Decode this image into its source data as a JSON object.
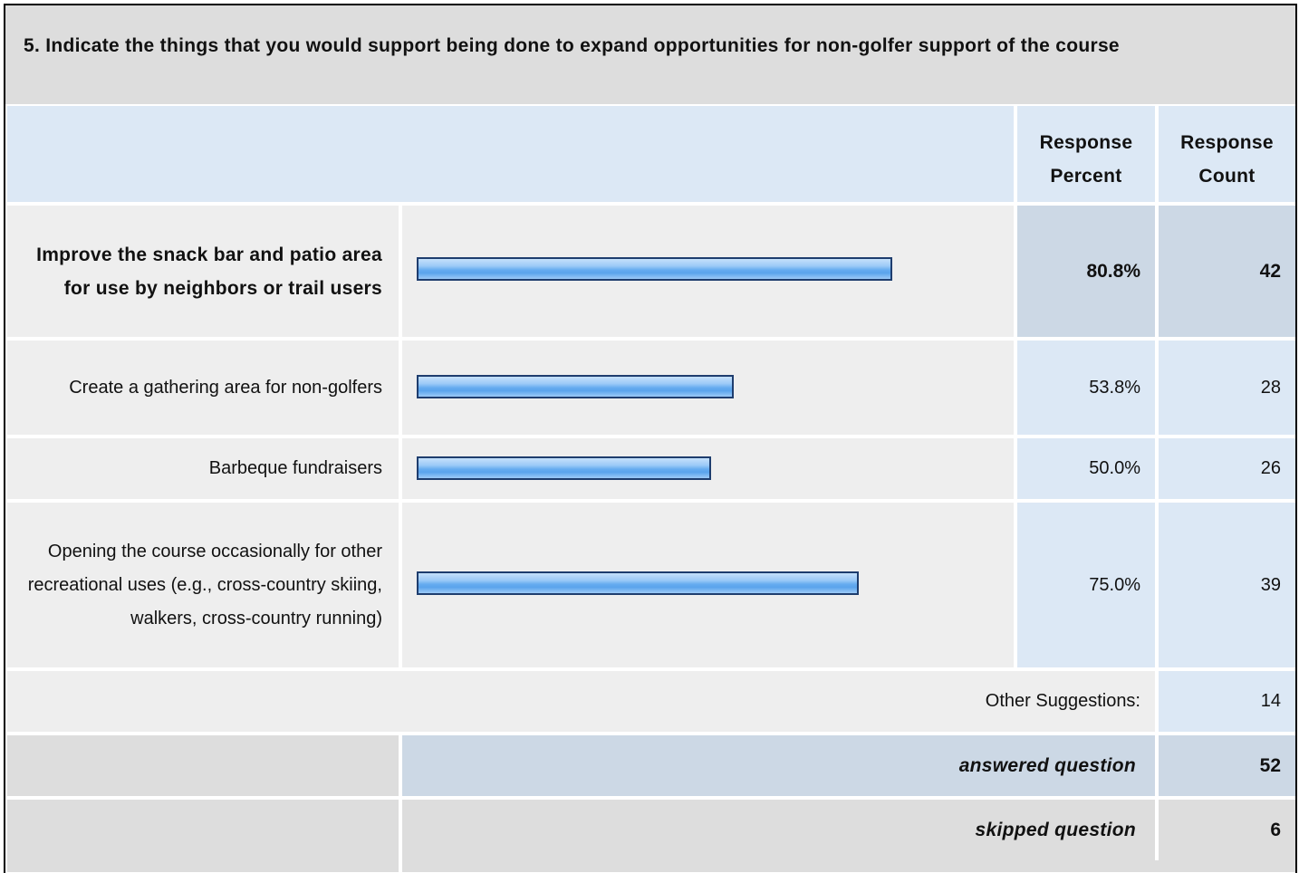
{
  "question": {
    "title": "5. Indicate the things that you would support being done to expand opportunities for non-golfer support of the course"
  },
  "header": {
    "percent_label": "Response Percent",
    "count_label": "Response Count"
  },
  "chart_data": {
    "type": "bar",
    "orientation": "horizontal",
    "title": "5. Indicate the things that you would support being done to expand opportunities for non-golfer support of the course",
    "categories": [
      "Improve the snack bar and patio area for use by neighbors or trail users",
      "Create a gathering area for non-golfers",
      "Barbeque fundraisers",
      "Opening the course occasionally for other recreational uses (e.g., cross-country skiing, walkers, cross-country running)"
    ],
    "series": [
      {
        "name": "Response Percent",
        "values": [
          80.8,
          53.8,
          50.0,
          75.0
        ]
      },
      {
        "name": "Response Count",
        "values": [
          42,
          28,
          26,
          39
        ]
      }
    ],
    "xlim": [
      0,
      100
    ]
  },
  "rows": [
    {
      "label": "Improve the snack bar and patio area for use by neighbors or trail users",
      "percent": "80.8%",
      "count": "42",
      "highlight": true
    },
    {
      "label": "Create a gathering area for non-golfers",
      "percent": "53.8%",
      "count": "28",
      "highlight": false
    },
    {
      "label": "Barbeque fundraisers",
      "percent": "50.0%",
      "count": "26",
      "highlight": false
    },
    {
      "label": "Opening the course occasionally for other recreational uses (e.g., cross-country skiing, walkers, cross-country running)",
      "percent": "75.0%",
      "count": "39",
      "highlight": false
    }
  ],
  "other": {
    "label": "Other Suggestions:",
    "count": "14"
  },
  "summary": {
    "answered_label": "answered question",
    "answered_value": "52",
    "skipped_label": "skipped question",
    "skipped_value": "6"
  },
  "colors": {
    "bar_border": "#1e3d6e",
    "bar_fill": "#66acf0",
    "header_bg": "#dce8f5",
    "highlight_bg": "#ccd8e5",
    "label_bg": "#eeeeee",
    "title_bg": "#dddddd"
  }
}
